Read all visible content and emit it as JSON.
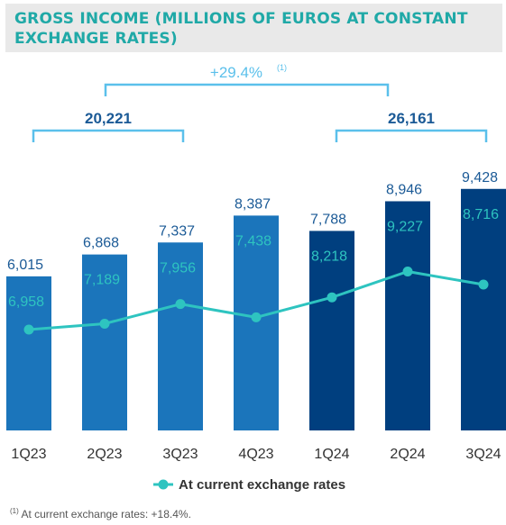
{
  "title": "GROSS INCOME (MILLIONS OF EUROS AT CONSTANT EXCHANGE RATES)",
  "colors": {
    "bar_2023": "#1b75bb",
    "bar_2024": "#003f7f",
    "line": "#2ec4c0",
    "bracket_total": "#5bc0eb",
    "value_text": "#1b5a96",
    "growth_text": "#5bc0eb",
    "title_text": "#20a9a7",
    "title_bg": "#e9e9e9"
  },
  "chart_data": {
    "type": "bar",
    "categories": [
      "1Q23",
      "2Q23",
      "3Q23",
      "4Q23",
      "1Q24",
      "2Q24",
      "3Q24"
    ],
    "series": [
      {
        "values": [
          6015,
          6868,
          7337,
          8387,
          7788,
          8946,
          9428
        ],
        "value_labels": [
          "6,015",
          "6,868",
          "7,337",
          "8,387",
          "7,788",
          "8,946",
          "9,428"
        ]
      },
      {
        "name": "At current exchange rates",
        "type": "line",
        "values": [
          6958,
          7189,
          7956,
          7438,
          8218,
          9227,
          8716
        ],
        "value_labels": [
          "6,958",
          "7,189",
          "7,956",
          "7,438",
          "8,218",
          "9,227",
          "8,716"
        ]
      }
    ],
    "period_totals": [
      {
        "label": "20,221",
        "from": "1Q23",
        "to": "3Q23"
      },
      {
        "label": "26,161",
        "from": "1Q24",
        "to": "3Q24"
      }
    ],
    "growth": {
      "label": "+29.4%",
      "marker": "(1)"
    },
    "legend": {
      "label": "At current exchange rates",
      "position": "bottom"
    },
    "grid": false
  },
  "footnote": {
    "marker": "(1)",
    "text": " At current exchange rates: +18.4%."
  }
}
